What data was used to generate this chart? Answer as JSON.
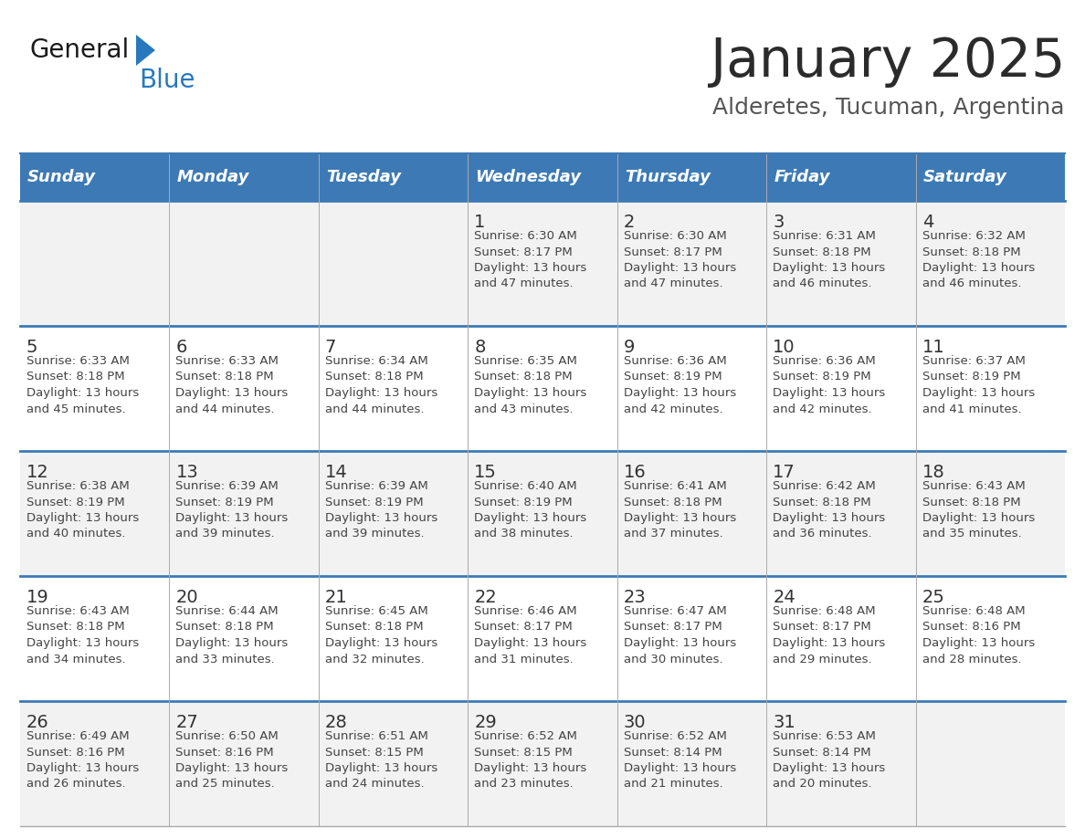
{
  "title": "January 2025",
  "subtitle": "Alderetes, Tucuman, Argentina",
  "days_of_week": [
    "Sunday",
    "Monday",
    "Tuesday",
    "Wednesday",
    "Thursday",
    "Friday",
    "Saturday"
  ],
  "header_bg": "#3D7AB5",
  "header_text": "#FFFFFF",
  "row_bg_odd": "#F2F2F2",
  "row_bg_even": "#FFFFFF",
  "cell_border_color": "#AAAAAA",
  "week_divider_color": "#3D7AB5",
  "day_num_color": "#333333",
  "content_color": "#444444",
  "title_color": "#2B2B2B",
  "subtitle_color": "#555555",
  "logo_general_color": "#1A1A1A",
  "logo_blue_color": "#2878BE",
  "calendar": [
    [
      {
        "day": null,
        "sunrise": null,
        "sunset": null,
        "daylight_a": null,
        "daylight_b": null
      },
      {
        "day": null,
        "sunrise": null,
        "sunset": null,
        "daylight_a": null,
        "daylight_b": null
      },
      {
        "day": null,
        "sunrise": null,
        "sunset": null,
        "daylight_a": null,
        "daylight_b": null
      },
      {
        "day": 1,
        "sunrise": "6:30 AM",
        "sunset": "8:17 PM",
        "daylight_a": "Daylight: 13 hours",
        "daylight_b": "and 47 minutes."
      },
      {
        "day": 2,
        "sunrise": "6:30 AM",
        "sunset": "8:17 PM",
        "daylight_a": "Daylight: 13 hours",
        "daylight_b": "and 47 minutes."
      },
      {
        "day": 3,
        "sunrise": "6:31 AM",
        "sunset": "8:18 PM",
        "daylight_a": "Daylight: 13 hours",
        "daylight_b": "and 46 minutes."
      },
      {
        "day": 4,
        "sunrise": "6:32 AM",
        "sunset": "8:18 PM",
        "daylight_a": "Daylight: 13 hours",
        "daylight_b": "and 46 minutes."
      }
    ],
    [
      {
        "day": 5,
        "sunrise": "6:33 AM",
        "sunset": "8:18 PM",
        "daylight_a": "Daylight: 13 hours",
        "daylight_b": "and 45 minutes."
      },
      {
        "day": 6,
        "sunrise": "6:33 AM",
        "sunset": "8:18 PM",
        "daylight_a": "Daylight: 13 hours",
        "daylight_b": "and 44 minutes."
      },
      {
        "day": 7,
        "sunrise": "6:34 AM",
        "sunset": "8:18 PM",
        "daylight_a": "Daylight: 13 hours",
        "daylight_b": "and 44 minutes."
      },
      {
        "day": 8,
        "sunrise": "6:35 AM",
        "sunset": "8:18 PM",
        "daylight_a": "Daylight: 13 hours",
        "daylight_b": "and 43 minutes."
      },
      {
        "day": 9,
        "sunrise": "6:36 AM",
        "sunset": "8:19 PM",
        "daylight_a": "Daylight: 13 hours",
        "daylight_b": "and 42 minutes."
      },
      {
        "day": 10,
        "sunrise": "6:36 AM",
        "sunset": "8:19 PM",
        "daylight_a": "Daylight: 13 hours",
        "daylight_b": "and 42 minutes."
      },
      {
        "day": 11,
        "sunrise": "6:37 AM",
        "sunset": "8:19 PM",
        "daylight_a": "Daylight: 13 hours",
        "daylight_b": "and 41 minutes."
      }
    ],
    [
      {
        "day": 12,
        "sunrise": "6:38 AM",
        "sunset": "8:19 PM",
        "daylight_a": "Daylight: 13 hours",
        "daylight_b": "and 40 minutes."
      },
      {
        "day": 13,
        "sunrise": "6:39 AM",
        "sunset": "8:19 PM",
        "daylight_a": "Daylight: 13 hours",
        "daylight_b": "and 39 minutes."
      },
      {
        "day": 14,
        "sunrise": "6:39 AM",
        "sunset": "8:19 PM",
        "daylight_a": "Daylight: 13 hours",
        "daylight_b": "and 39 minutes."
      },
      {
        "day": 15,
        "sunrise": "6:40 AM",
        "sunset": "8:19 PM",
        "daylight_a": "Daylight: 13 hours",
        "daylight_b": "and 38 minutes."
      },
      {
        "day": 16,
        "sunrise": "6:41 AM",
        "sunset": "8:18 PM",
        "daylight_a": "Daylight: 13 hours",
        "daylight_b": "and 37 minutes."
      },
      {
        "day": 17,
        "sunrise": "6:42 AM",
        "sunset": "8:18 PM",
        "daylight_a": "Daylight: 13 hours",
        "daylight_b": "and 36 minutes."
      },
      {
        "day": 18,
        "sunrise": "6:43 AM",
        "sunset": "8:18 PM",
        "daylight_a": "Daylight: 13 hours",
        "daylight_b": "and 35 minutes."
      }
    ],
    [
      {
        "day": 19,
        "sunrise": "6:43 AM",
        "sunset": "8:18 PM",
        "daylight_a": "Daylight: 13 hours",
        "daylight_b": "and 34 minutes."
      },
      {
        "day": 20,
        "sunrise": "6:44 AM",
        "sunset": "8:18 PM",
        "daylight_a": "Daylight: 13 hours",
        "daylight_b": "and 33 minutes."
      },
      {
        "day": 21,
        "sunrise": "6:45 AM",
        "sunset": "8:18 PM",
        "daylight_a": "Daylight: 13 hours",
        "daylight_b": "and 32 minutes."
      },
      {
        "day": 22,
        "sunrise": "6:46 AM",
        "sunset": "8:17 PM",
        "daylight_a": "Daylight: 13 hours",
        "daylight_b": "and 31 minutes."
      },
      {
        "day": 23,
        "sunrise": "6:47 AM",
        "sunset": "8:17 PM",
        "daylight_a": "Daylight: 13 hours",
        "daylight_b": "and 30 minutes."
      },
      {
        "day": 24,
        "sunrise": "6:48 AM",
        "sunset": "8:17 PM",
        "daylight_a": "Daylight: 13 hours",
        "daylight_b": "and 29 minutes."
      },
      {
        "day": 25,
        "sunrise": "6:48 AM",
        "sunset": "8:16 PM",
        "daylight_a": "Daylight: 13 hours",
        "daylight_b": "and 28 minutes."
      }
    ],
    [
      {
        "day": 26,
        "sunrise": "6:49 AM",
        "sunset": "8:16 PM",
        "daylight_a": "Daylight: 13 hours",
        "daylight_b": "and 26 minutes."
      },
      {
        "day": 27,
        "sunrise": "6:50 AM",
        "sunset": "8:16 PM",
        "daylight_a": "Daylight: 13 hours",
        "daylight_b": "and 25 minutes."
      },
      {
        "day": 28,
        "sunrise": "6:51 AM",
        "sunset": "8:15 PM",
        "daylight_a": "Daylight: 13 hours",
        "daylight_b": "and 24 minutes."
      },
      {
        "day": 29,
        "sunrise": "6:52 AM",
        "sunset": "8:15 PM",
        "daylight_a": "Daylight: 13 hours",
        "daylight_b": "and 23 minutes."
      },
      {
        "day": 30,
        "sunrise": "6:52 AM",
        "sunset": "8:14 PM",
        "daylight_a": "Daylight: 13 hours",
        "daylight_b": "and 21 minutes."
      },
      {
        "day": 31,
        "sunrise": "6:53 AM",
        "sunset": "8:14 PM",
        "daylight_a": "Daylight: 13 hours",
        "daylight_b": "and 20 minutes."
      },
      {
        "day": null,
        "sunrise": null,
        "sunset": null,
        "daylight_a": null,
        "daylight_b": null
      }
    ]
  ]
}
